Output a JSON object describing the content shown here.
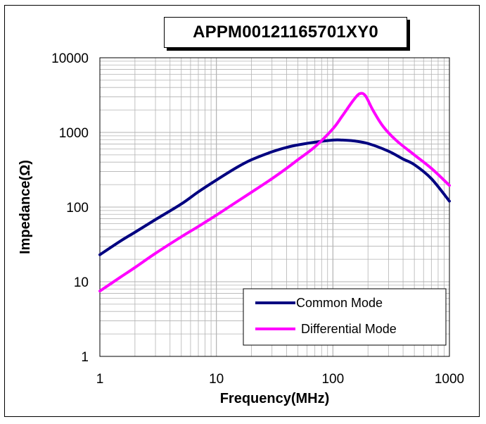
{
  "chart_data": {
    "type": "line",
    "title": "APPM00121165701XY0",
    "xlabel": "Frequency(MHz)",
    "ylabel": "Impedance(Ω)",
    "xscale": "log",
    "yscale": "log",
    "xlim": [
      1,
      1000
    ],
    "ylim": [
      1,
      10000
    ],
    "x_ticks": [
      "1",
      "10",
      "100",
      "1000"
    ],
    "y_ticks": [
      "1",
      "10",
      "100",
      "1000",
      "10000"
    ],
    "grid": true,
    "legend_position": "bottom-right",
    "series": [
      {
        "name": "Common Mode",
        "color": "#000080",
        "x": [
          1,
          1.5,
          2,
          3,
          5,
          7,
          10,
          15,
          20,
          30,
          40,
          50,
          70,
          100,
          120,
          150,
          200,
          300,
          400,
          500,
          700,
          1000
        ],
        "y": [
          23,
          35,
          46,
          68,
          110,
          160,
          230,
          340,
          430,
          550,
          630,
          680,
          740,
          790,
          790,
          770,
          710,
          560,
          440,
          370,
          240,
          120
        ]
      },
      {
        "name": "Differential Mode",
        "color": "#ff00ff",
        "x": [
          1,
          1.5,
          2,
          3,
          5,
          7,
          10,
          15,
          20,
          30,
          40,
          50,
          70,
          100,
          120,
          150,
          170,
          190,
          220,
          270,
          350,
          500,
          700,
          1000
        ],
        "y": [
          7.5,
          11.5,
          15.5,
          24,
          40,
          55,
          78,
          118,
          158,
          240,
          330,
          430,
          640,
          1120,
          1650,
          2700,
          3300,
          3100,
          2000,
          1200,
          780,
          500,
          330,
          195
        ]
      }
    ]
  }
}
